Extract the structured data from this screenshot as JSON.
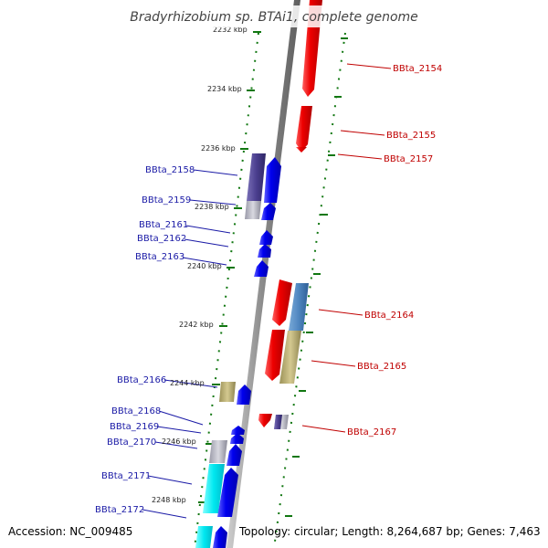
{
  "title": "Bradyrhizobium sp. BTAi1, complete genome",
  "accession": "Accession: NC_009485",
  "topology": "Topology: circular; Length: 8,264,687 bp; Genes: 7,463",
  "kbp_labels": [
    "2232 kbp",
    "2234 kbp",
    "2236 kbp",
    "2238 kbp",
    "2240 kbp",
    "2242 kbp",
    "2244 kbp",
    "2246 kbp",
    "2248 kbp"
  ],
  "genes_left": [
    "BBta_2158",
    "BBta_2159",
    "BBta_2161",
    "BBta_2162",
    "BBta_2163",
    "BBta_2166",
    "BBta_2168",
    "BBta_2169",
    "BBta_2170",
    "BBta_2171",
    "BBta_2172"
  ],
  "genes_right": [
    "BBta_2154",
    "BBta_2155",
    "BBta_2157",
    "BBta_2164",
    "BBta_2165",
    "BBta_2167"
  ],
  "colors": {
    "forward": "#0000ee",
    "reverse": "#ee0000",
    "purple": "#4b3f8f",
    "gray": "#b4b4c0",
    "khaki": "#b8ad72",
    "steel": "#4f86c0",
    "cyan": "#00e0e8",
    "backbone": "#888888",
    "tick": "#117711"
  }
}
